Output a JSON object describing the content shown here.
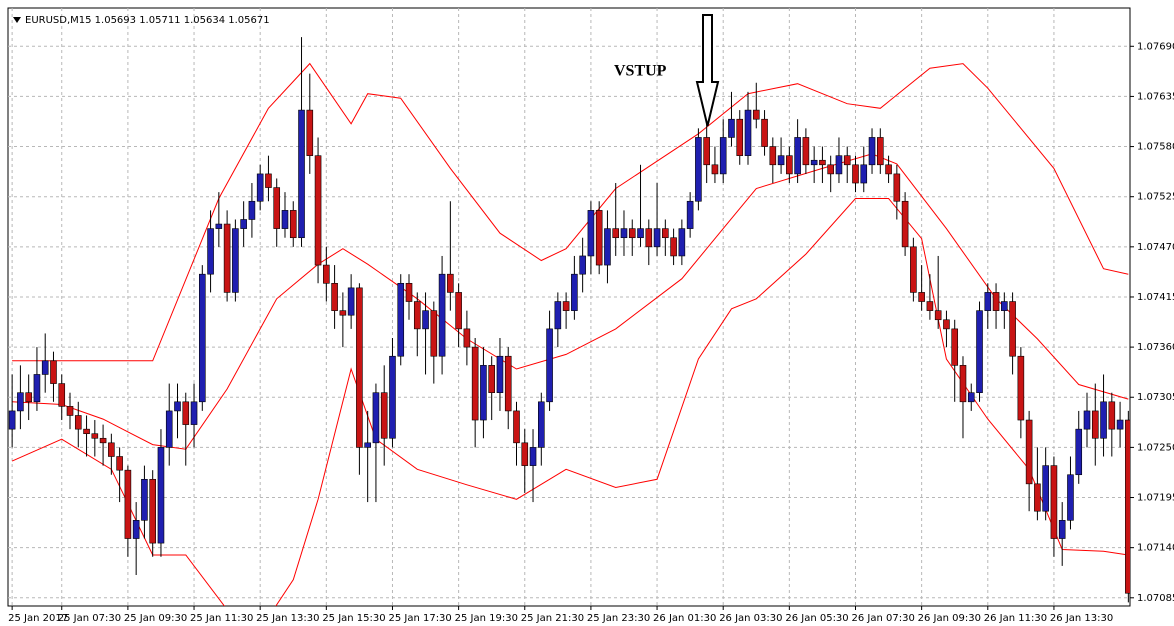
{
  "chart_data": {
    "type": "candlestick",
    "title": "EURUSD,M15  1.05693 1.05711 1.05634 1.05671",
    "annotation": "VSTUP",
    "up_color": "#1f1fb0",
    "down_color": "#c81414",
    "wick_color": "#000000",
    "grid": true,
    "ylim": [
      1.07076,
      1.07732
    ],
    "yticks": [
      {
        "value": 1.0769,
        "label": "1.07690"
      },
      {
        "value": 1.07635,
        "label": "1.07635"
      },
      {
        "value": 1.0758,
        "label": "1.07580"
      },
      {
        "value": 1.07525,
        "label": "1.07525"
      },
      {
        "value": 1.0747,
        "label": "1.07470"
      },
      {
        "value": 1.07415,
        "label": "1.07415"
      },
      {
        "value": 1.0736,
        "label": "1.07360"
      },
      {
        "value": 1.07305,
        "label": "1.07305"
      },
      {
        "value": 1.0725,
        "label": "1.07250"
      },
      {
        "value": 1.07195,
        "label": "1.07195"
      },
      {
        "value": 1.0714,
        "label": "1.07140"
      },
      {
        "value": 1.07085,
        "label": "1.07085"
      }
    ],
    "xlim": [
      -0.5,
      135.2
    ],
    "xticks": [
      {
        "value": 0,
        "label": "25 Jan 2017"
      },
      {
        "value": 6,
        "label": "25 Jan 07:30"
      },
      {
        "value": 14,
        "label": "25 Jan 09:30"
      },
      {
        "value": 22,
        "label": "25 Jan 11:30"
      },
      {
        "value": 30,
        "label": "25 Jan 13:30"
      },
      {
        "value": 38,
        "label": "25 Jan 15:30"
      },
      {
        "value": 46,
        "label": "25 Jan 17:30"
      },
      {
        "value": 54,
        "label": "25 Jan 19:30"
      },
      {
        "value": 62,
        "label": "25 Jan 21:30"
      },
      {
        "value": 70,
        "label": "25 Jan 23:30"
      },
      {
        "value": 78,
        "label": "26 Jan 01:30"
      },
      {
        "value": 86,
        "label": "26 Jan 03:30"
      },
      {
        "value": 94,
        "label": "26 Jan 05:30"
      },
      {
        "value": 102,
        "label": "26 Jan 07:30"
      },
      {
        "value": 110,
        "label": "26 Jan 09:30"
      },
      {
        "value": 118,
        "label": "26 Jan 11:30"
      },
      {
        "value": 126,
        "label": "26 Jan 13:30"
      }
    ],
    "candles": [
      [
        1.0727,
        1.0733,
        1.0725,
        1.0729
      ],
      [
        1.0729,
        1.0734,
        1.0727,
        1.0731
      ],
      [
        1.0731,
        1.0733,
        1.0728,
        1.073
      ],
      [
        1.073,
        1.0736,
        1.0729,
        1.0733
      ],
      [
        1.0733,
        1.07375,
        1.0731,
        1.07345
      ],
      [
        1.07345,
        1.07355,
        1.073,
        1.0732
      ],
      [
        1.0732,
        1.0733,
        1.0728,
        1.07295
      ],
      [
        1.07295,
        1.0731,
        1.0727,
        1.07285
      ],
      [
        1.07285,
        1.073,
        1.0725,
        1.0727
      ],
      [
        1.0727,
        1.07285,
        1.0724,
        1.07265
      ],
      [
        1.07265,
        1.0728,
        1.0724,
        1.0726
      ],
      [
        1.0726,
        1.07275,
        1.0723,
        1.07255
      ],
      [
        1.07255,
        1.07265,
        1.0722,
        1.0724
      ],
      [
        1.0724,
        1.0725,
        1.0719,
        1.07225
      ],
      [
        1.07225,
        1.0723,
        1.0713,
        1.0715
      ],
      [
        1.0715,
        1.0719,
        1.0711,
        1.0717
      ],
      [
        1.0717,
        1.0723,
        1.0715,
        1.07215
      ],
      [
        1.07215,
        1.07225,
        1.0713,
        1.07145
      ],
      [
        1.07145,
        1.0727,
        1.0713,
        1.0725
      ],
      [
        1.0725,
        1.0732,
        1.0723,
        1.0729
      ],
      [
        1.0729,
        1.0732,
        1.0726,
        1.073
      ],
      [
        1.073,
        1.0731,
        1.0723,
        1.07275
      ],
      [
        1.07275,
        1.0732,
        1.0725,
        1.073
      ],
      [
        1.073,
        1.0745,
        1.0729,
        1.0744
      ],
      [
        1.0744,
        1.0751,
        1.0742,
        1.0749
      ],
      [
        1.0749,
        1.0753,
        1.0747,
        1.07495
      ],
      [
        1.07495,
        1.0751,
        1.0741,
        1.0742
      ],
      [
        1.0742,
        1.075,
        1.0741,
        1.0749
      ],
      [
        1.0749,
        1.0752,
        1.0747,
        1.075
      ],
      [
        1.075,
        1.0754,
        1.0748,
        1.0752
      ],
      [
        1.0752,
        1.0756,
        1.0751,
        1.0755
      ],
      [
        1.0755,
        1.0757,
        1.0752,
        1.07535
      ],
      [
        1.07535,
        1.07545,
        1.0747,
        1.0749
      ],
      [
        1.0749,
        1.0753,
        1.0748,
        1.0751
      ],
      [
        1.0751,
        1.0752,
        1.0747,
        1.0748
      ],
      [
        1.0748,
        1.077,
        1.0747,
        1.0762
      ],
      [
        1.0762,
        1.0766,
        1.0755,
        1.0757
      ],
      [
        1.0757,
        1.0759,
        1.0743,
        1.0745
      ],
      [
        1.0745,
        1.0747,
        1.0741,
        1.0743
      ],
      [
        1.0743,
        1.0745,
        1.0738,
        1.074
      ],
      [
        1.074,
        1.0742,
        1.0736,
        1.07395
      ],
      [
        1.07395,
        1.0744,
        1.0738,
        1.07425
      ],
      [
        1.07425,
        1.0743,
        1.0722,
        1.0725
      ],
      [
        1.0725,
        1.0729,
        1.0719,
        1.07255
      ],
      [
        1.07255,
        1.0732,
        1.0719,
        1.0731
      ],
      [
        1.0731,
        1.0734,
        1.0723,
        1.0726
      ],
      [
        1.0726,
        1.0737,
        1.0725,
        1.0735
      ],
      [
        1.0735,
        1.0744,
        1.0734,
        1.0743
      ],
      [
        1.0743,
        1.0744,
        1.0739,
        1.0741
      ],
      [
        1.0741,
        1.0742,
        1.0735,
        1.0738
      ],
      [
        1.0738,
        1.0742,
        1.0733,
        1.074
      ],
      [
        1.074,
        1.0741,
        1.0732,
        1.0735
      ],
      [
        1.0735,
        1.0746,
        1.0733,
        1.0744
      ],
      [
        1.0744,
        1.0752,
        1.074,
        1.0742
      ],
      [
        1.0742,
        1.0743,
        1.0736,
        1.0738
      ],
      [
        1.0738,
        1.074,
        1.0734,
        1.0736
      ],
      [
        1.0736,
        1.0737,
        1.0725,
        1.0728
      ],
      [
        1.0728,
        1.0736,
        1.0726,
        1.0734
      ],
      [
        1.0734,
        1.0735,
        1.0728,
        1.0731
      ],
      [
        1.0731,
        1.0737,
        1.0729,
        1.0735
      ],
      [
        1.0735,
        1.0736,
        1.0727,
        1.0729
      ],
      [
        1.0729,
        1.073,
        1.0723,
        1.07255
      ],
      [
        1.07255,
        1.0727,
        1.072,
        1.0723
      ],
      [
        1.0723,
        1.0727,
        1.0719,
        1.0725
      ],
      [
        1.0725,
        1.0731,
        1.0723,
        1.073
      ],
      [
        1.073,
        1.074,
        1.0729,
        1.0738
      ],
      [
        1.0738,
        1.0742,
        1.0736,
        1.0741
      ],
      [
        1.0741,
        1.0742,
        1.0738,
        1.074
      ],
      [
        1.074,
        1.0746,
        1.0739,
        1.0744
      ],
      [
        1.0744,
        1.0748,
        1.0742,
        1.0746
      ],
      [
        1.0746,
        1.0752,
        1.0744,
        1.0751
      ],
      [
        1.0751,
        1.0752,
        1.0744,
        1.0745
      ],
      [
        1.0745,
        1.0751,
        1.0743,
        1.0749
      ],
      [
        1.0749,
        1.0754,
        1.0746,
        1.0748
      ],
      [
        1.0748,
        1.0751,
        1.0746,
        1.0749
      ],
      [
        1.0749,
        1.075,
        1.0746,
        1.0748
      ],
      [
        1.0748,
        1.0756,
        1.0747,
        1.0749
      ],
      [
        1.0749,
        1.075,
        1.0745,
        1.0747
      ],
      [
        1.0747,
        1.0754,
        1.0746,
        1.0749
      ],
      [
        1.0749,
        1.075,
        1.0746,
        1.0748
      ],
      [
        1.0748,
        1.0749,
        1.0745,
        1.0746
      ],
      [
        1.0746,
        1.075,
        1.0745,
        1.0749
      ],
      [
        1.0749,
        1.0753,
        1.0748,
        1.0752
      ],
      [
        1.0752,
        1.076,
        1.0751,
        1.0759
      ],
      [
        1.0759,
        1.0761,
        1.0754,
        1.0756
      ],
      [
        1.0756,
        1.0758,
        1.0754,
        1.0755
      ],
      [
        1.0755,
        1.0761,
        1.0754,
        1.0759
      ],
      [
        1.0759,
        1.0764,
        1.0758,
        1.0761
      ],
      [
        1.0761,
        1.0762,
        1.0756,
        1.0757
      ],
      [
        1.0757,
        1.0764,
        1.0756,
        1.0762
      ],
      [
        1.0762,
        1.0765,
        1.076,
        1.0761
      ],
      [
        1.0761,
        1.0762,
        1.0757,
        1.0758
      ],
      [
        1.0758,
        1.0759,
        1.0754,
        1.0756
      ],
      [
        1.0756,
        1.0759,
        1.0755,
        1.0757
      ],
      [
        1.0757,
        1.0758,
        1.0754,
        1.0755
      ],
      [
        1.0755,
        1.0761,
        1.0754,
        1.0759
      ],
      [
        1.0759,
        1.076,
        1.0755,
        1.0756
      ],
      [
        1.0756,
        1.0758,
        1.0754,
        1.07565
      ],
      [
        1.07565,
        1.0758,
        1.0754,
        1.0756
      ],
      [
        1.0756,
        1.0757,
        1.0753,
        1.0755
      ],
      [
        1.0755,
        1.0759,
        1.0754,
        1.0757
      ],
      [
        1.0757,
        1.0758,
        1.0754,
        1.0756
      ],
      [
        1.0756,
        1.0757,
        1.0753,
        1.0754
      ],
      [
        1.0754,
        1.0758,
        1.0753,
        1.0756
      ],
      [
        1.0756,
        1.076,
        1.0755,
        1.0759
      ],
      [
        1.0759,
        1.076,
        1.0755,
        1.0756
      ],
      [
        1.0756,
        1.0757,
        1.0754,
        1.0755
      ],
      [
        1.0755,
        1.0756,
        1.075,
        1.0752
      ],
      [
        1.0752,
        1.0753,
        1.0746,
        1.0747
      ],
      [
        1.0747,
        1.0748,
        1.0741,
        1.0742
      ],
      [
        1.0742,
        1.0745,
        1.074,
        1.0741
      ],
      [
        1.0741,
        1.0744,
        1.0739,
        1.074
      ],
      [
        1.074,
        1.0746,
        1.0738,
        1.0739
      ],
      [
        1.0739,
        1.074,
        1.0736,
        1.0738
      ],
      [
        1.0738,
        1.0739,
        1.073,
        1.0734
      ],
      [
        1.0734,
        1.0735,
        1.0726,
        1.073
      ],
      [
        1.073,
        1.0732,
        1.0729,
        1.0731
      ],
      [
        1.0731,
        1.0741,
        1.073,
        1.074
      ],
      [
        1.074,
        1.0743,
        1.0738,
        1.0742
      ],
      [
        1.0742,
        1.0743,
        1.0738,
        1.074
      ],
      [
        1.074,
        1.0742,
        1.0738,
        1.0741
      ],
      [
        1.0741,
        1.0742,
        1.0733,
        1.0735
      ],
      [
        1.0735,
        1.0736,
        1.0726,
        1.0728
      ],
      [
        1.0728,
        1.0729,
        1.0718,
        1.0721
      ],
      [
        1.0721,
        1.0725,
        1.0717,
        1.0718
      ],
      [
        1.0718,
        1.0725,
        1.0717,
        1.0723
      ],
      [
        1.0723,
        1.0724,
        1.0713,
        1.0715
      ],
      [
        1.0715,
        1.0719,
        1.0712,
        1.0717
      ],
      [
        1.0717,
        1.0724,
        1.0716,
        1.0722
      ],
      [
        1.0722,
        1.0729,
        1.0721,
        1.0727
      ],
      [
        1.0727,
        1.0731,
        1.0725,
        1.0729
      ],
      [
        1.0729,
        1.0732,
        1.0723,
        1.0726
      ],
      [
        1.0726,
        1.0733,
        1.0724,
        1.073
      ],
      [
        1.073,
        1.0731,
        1.0724,
        1.0727
      ],
      [
        1.0727,
        1.073,
        1.0725,
        1.0728
      ],
      [
        1.0728,
        1.0729,
        1.0708,
        1.0709
      ]
    ],
    "series": [
      {
        "color": "#ff0000",
        "x": [
          0,
          17,
          25,
          31,
          36,
          41,
          43,
          47,
          53,
          59,
          64,
          67,
          73,
          83,
          89,
          95,
          101,
          105,
          111,
          115,
          118,
          126,
          132,
          135
        ],
        "values": [
          1.07345,
          1.07345,
          1.07523,
          1.07622,
          1.07671,
          1.07605,
          1.07638,
          1.07633,
          1.07556,
          1.07485,
          1.07455,
          1.07468,
          1.07534,
          1.07594,
          1.07638,
          1.07649,
          1.07627,
          1.07622,
          1.07666,
          1.07671,
          1.07644,
          1.07556,
          1.07446,
          1.0744
        ]
      },
      {
        "color": "#ff0000",
        "x": [
          0,
          6,
          11,
          17,
          21,
          26,
          32,
          37,
          40,
          43,
          49,
          55,
          61,
          67,
          73,
          81,
          86,
          90,
          98,
          104,
          107,
          113,
          119,
          124,
          129,
          135
        ],
        "values": [
          1.073,
          1.07297,
          1.07281,
          1.07253,
          1.07248,
          1.07314,
          1.07413,
          1.07451,
          1.07468,
          1.07451,
          1.07413,
          1.07369,
          1.07336,
          1.07352,
          1.0738,
          1.07435,
          1.0749,
          1.07534,
          1.07556,
          1.07572,
          1.07561,
          1.0749,
          1.07413,
          1.07369,
          1.07319,
          1.07303
        ]
      },
      {
        "color": "#ff0000",
        "x": [
          0,
          6,
          12,
          17,
          21,
          26,
          30,
          34,
          37,
          41,
          44,
          49,
          55,
          61,
          67,
          73,
          78,
          83,
          87,
          90,
          96,
          102,
          106,
          110,
          113,
          118,
          123,
          127,
          132,
          135
        ],
        "values": [
          1.07235,
          1.07259,
          1.07226,
          1.07132,
          1.07132,
          1.07072,
          1.0705,
          1.07105,
          1.07193,
          1.07336,
          1.07259,
          1.07226,
          1.07209,
          1.07193,
          1.07226,
          1.07206,
          1.07215,
          1.07347,
          1.07402,
          1.07413,
          1.07462,
          1.07523,
          1.07523,
          1.07479,
          1.07347,
          1.07281,
          1.07226,
          1.07138,
          1.07136,
          1.07132
        ]
      }
    ]
  }
}
